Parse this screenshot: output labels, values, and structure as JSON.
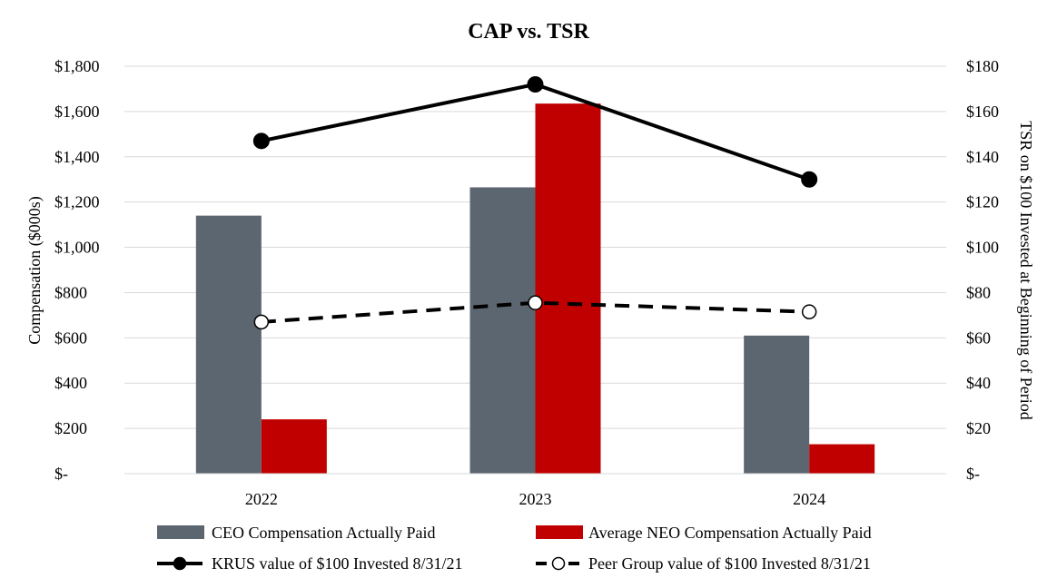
{
  "chart_data": {
    "type": "bar",
    "title": "CAP vs. TSR",
    "categories": [
      "2022",
      "2023",
      "2024"
    ],
    "ylabel_left": "Compensation ($000s)",
    "ylabel_right": "TSR on $100 Invested at Beginning of Period",
    "ylim_left": [
      0,
      1800
    ],
    "ylim_right": [
      0,
      180
    ],
    "yticks_left": [
      "$-",
      "$200",
      "$400",
      "$600",
      "$800",
      "$1,000",
      "$1,200",
      "$1,400",
      "$1,600",
      "$1,800"
    ],
    "yticks_right": [
      "$-",
      "$20",
      "$40",
      "$60",
      "$80",
      "$100",
      "$120",
      "$140",
      "$160",
      "$180"
    ],
    "grid": true,
    "legend_position": "bottom",
    "series": [
      {
        "name": "CEO Compensation Actually Paid",
        "kind": "bar",
        "axis": "left",
        "color": "#5c6670",
        "values": [
          1140,
          1265,
          610
        ]
      },
      {
        "name": "Average NEO Compensation Actually Paid",
        "kind": "bar",
        "axis": "left",
        "color": "#c00000",
        "values": [
          240,
          1635,
          130
        ]
      },
      {
        "name": "KRUS value of $100 Invested 8/31/21",
        "kind": "line",
        "axis": "right",
        "color": "#000000",
        "style": "solid",
        "marker": "filled-circle",
        "values": [
          147,
          172,
          130
        ]
      },
      {
        "name": "Peer Group value of $100 Invested 8/31/21",
        "kind": "line",
        "axis": "right",
        "color": "#000000",
        "style": "dashed",
        "marker": "open-circle",
        "values": [
          67,
          75.5,
          71.5
        ]
      }
    ]
  }
}
